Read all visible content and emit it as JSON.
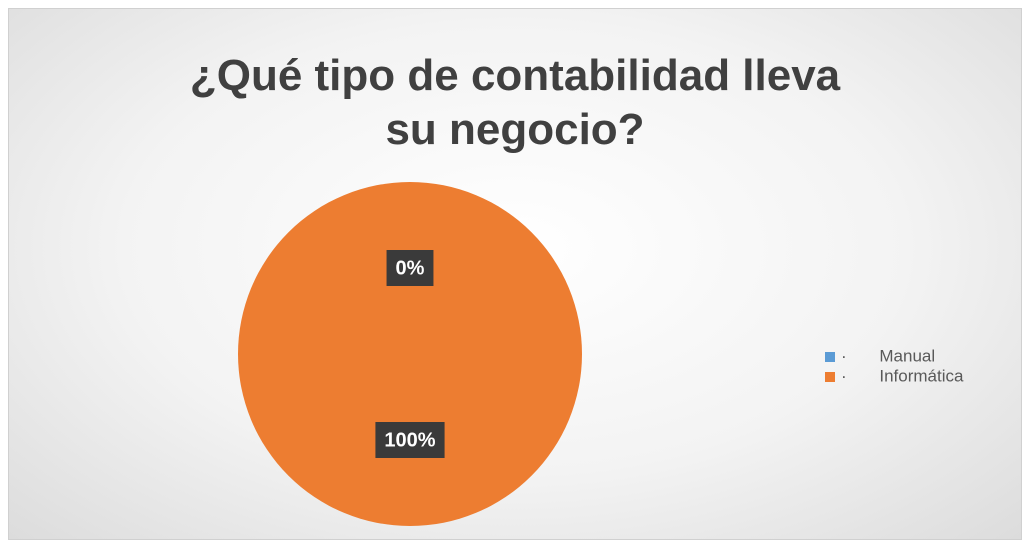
{
  "chart_data": {
    "type": "pie",
    "title": "¿Qué tipo de contabilidad lleva su negocio?",
    "categories": [
      "· Manual",
      "· Informática"
    ],
    "values": [
      0,
      100
    ],
    "value_labels": [
      "0%",
      "100%"
    ],
    "colors": [
      "#5b9bd5",
      "#ed7d31"
    ],
    "legend": "right"
  }
}
